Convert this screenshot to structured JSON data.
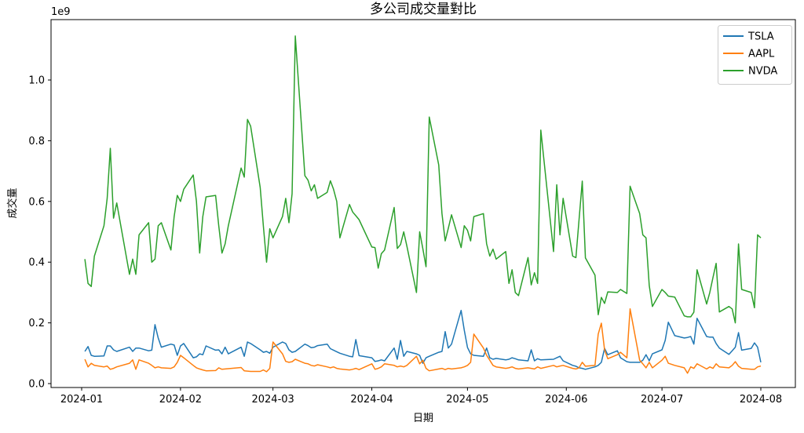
{
  "chart_data": {
    "type": "line",
    "title": "多公司成交量對比",
    "xlabel": "日期",
    "ylabel": "成交量",
    "y_offset_text": "1e9",
    "x_tick_labels": [
      "2024-01",
      "2024-02",
      "2024-03",
      "2024-04",
      "2024-05",
      "2024-06",
      "2024-07",
      "2024-08"
    ],
    "y_tick_labels": [
      "0.0",
      "0.2",
      "0.4",
      "0.6",
      "0.8",
      "1.0"
    ],
    "y_ticks": [
      0.0,
      0.2,
      0.4,
      0.6,
      0.8,
      1.0
    ],
    "ylim": [
      -0.022,
      1.2
    ],
    "grid": false,
    "background": "#ffffff",
    "axis_color": "#000000",
    "legend": {
      "position": "upper right",
      "entries": [
        "TSLA",
        "AAPL",
        "NVDA"
      ]
    },
    "x": [
      "2024-01-02",
      "2024-01-03",
      "2024-01-04",
      "2024-01-05",
      "2024-01-08",
      "2024-01-09",
      "2024-01-10",
      "2024-01-11",
      "2024-01-12",
      "2024-01-16",
      "2024-01-17",
      "2024-01-18",
      "2024-01-19",
      "2024-01-22",
      "2024-01-23",
      "2024-01-24",
      "2024-01-25",
      "2024-01-26",
      "2024-01-29",
      "2024-01-30",
      "2024-01-31",
      "2024-02-01",
      "2024-02-02",
      "2024-02-05",
      "2024-02-06",
      "2024-02-07",
      "2024-02-08",
      "2024-02-09",
      "2024-02-12",
      "2024-02-13",
      "2024-02-14",
      "2024-02-15",
      "2024-02-16",
      "2024-02-20",
      "2024-02-21",
      "2024-02-22",
      "2024-02-23",
      "2024-02-26",
      "2024-02-27",
      "2024-02-28",
      "2024-02-29",
      "2024-03-01",
      "2024-03-04",
      "2024-03-05",
      "2024-03-06",
      "2024-03-07",
      "2024-03-08",
      "2024-03-11",
      "2024-03-12",
      "2024-03-13",
      "2024-03-14",
      "2024-03-15",
      "2024-03-18",
      "2024-03-19",
      "2024-03-20",
      "2024-03-21",
      "2024-03-22",
      "2024-03-25",
      "2024-03-26",
      "2024-03-27",
      "2024-03-28",
      "2024-04-01",
      "2024-04-02",
      "2024-04-03",
      "2024-04-04",
      "2024-04-05",
      "2024-04-08",
      "2024-04-09",
      "2024-04-10",
      "2024-04-11",
      "2024-04-12",
      "2024-04-15",
      "2024-04-16",
      "2024-04-17",
      "2024-04-18",
      "2024-04-19",
      "2024-04-22",
      "2024-04-23",
      "2024-04-24",
      "2024-04-25",
      "2024-04-26",
      "2024-04-29",
      "2024-04-30",
      "2024-05-01",
      "2024-05-02",
      "2024-05-03",
      "2024-05-06",
      "2024-05-07",
      "2024-05-08",
      "2024-05-09",
      "2024-05-10",
      "2024-05-13",
      "2024-05-14",
      "2024-05-15",
      "2024-05-16",
      "2024-05-17",
      "2024-05-20",
      "2024-05-21",
      "2024-05-22",
      "2024-05-23",
      "2024-05-24",
      "2024-05-28",
      "2024-05-29",
      "2024-05-30",
      "2024-05-31",
      "2024-06-03",
      "2024-06-04",
      "2024-06-05",
      "2024-06-06",
      "2024-06-07",
      "2024-06-10",
      "2024-06-11",
      "2024-06-12",
      "2024-06-13",
      "2024-06-14",
      "2024-06-17",
      "2024-06-18",
      "2024-06-20",
      "2024-06-21",
      "2024-06-24",
      "2024-06-25",
      "2024-06-26",
      "2024-06-27",
      "2024-06-28",
      "2024-07-01",
      "2024-07-02",
      "2024-07-03",
      "2024-07-05",
      "2024-07-08",
      "2024-07-09",
      "2024-07-10",
      "2024-07-11",
      "2024-07-12",
      "2024-07-15",
      "2024-07-16",
      "2024-07-17",
      "2024-07-18",
      "2024-07-19",
      "2024-07-22",
      "2024-07-23",
      "2024-07-24",
      "2024-07-25",
      "2024-07-26",
      "2024-07-29",
      "2024-07-30",
      "2024-07-31",
      "2024-08-01"
    ],
    "series": [
      {
        "name": "TSLA",
        "color": "#1f77b4",
        "values": [
          0.106,
          0.122,
          0.093,
          0.09,
          0.091,
          0.124,
          0.124,
          0.111,
          0.106,
          0.12,
          0.106,
          0.117,
          0.117,
          0.108,
          0.11,
          0.194,
          0.15,
          0.12,
          0.13,
          0.127,
          0.093,
          0.124,
          0.132,
          0.085,
          0.088,
          0.098,
          0.095,
          0.124,
          0.11,
          0.111,
          0.098,
          0.12,
          0.098,
          0.12,
          0.09,
          0.137,
          0.132,
          0.111,
          0.103,
          0.106,
          0.1,
          0.12,
          0.137,
          0.132,
          0.111,
          0.103,
          0.106,
          0.13,
          0.125,
          0.118,
          0.12,
          0.125,
          0.13,
          0.115,
          0.11,
          0.105,
          0.1,
          0.09,
          0.088,
          0.145,
          0.092,
          0.085,
          0.073,
          0.075,
          0.078,
          0.075,
          0.117,
          0.08,
          0.142,
          0.09,
          0.106,
          0.098,
          0.093,
          0.067,
          0.085,
          0.09,
          0.103,
          0.106,
          0.171,
          0.117,
          0.13,
          0.241,
          0.176,
          0.119,
          0.098,
          0.093,
          0.09,
          0.117,
          0.085,
          0.08,
          0.083,
          0.078,
          0.08,
          0.085,
          0.082,
          0.078,
          0.075,
          0.111,
          0.075,
          0.082,
          0.078,
          0.08,
          0.085,
          0.09,
          0.075,
          0.06,
          0.057,
          0.052,
          0.05,
          0.047,
          0.055,
          0.06,
          0.07,
          0.116,
          0.095,
          0.108,
          0.085,
          0.072,
          0.07,
          0.07,
          0.077,
          0.095,
          0.075,
          0.098,
          0.111,
          0.142,
          0.202,
          0.158,
          0.15,
          0.152,
          0.155,
          0.13,
          0.215,
          0.155,
          0.153,
          0.153,
          0.132,
          0.117,
          0.096,
          0.108,
          0.12,
          0.168,
          0.11,
          0.116,
          0.134,
          0.12,
          0.07
        ]
      },
      {
        "name": "AAPL",
        "color": "#ff7f0e",
        "values": [
          0.08,
          0.055,
          0.067,
          0.06,
          0.055,
          0.058,
          0.047,
          0.05,
          0.055,
          0.067,
          0.078,
          0.047,
          0.078,
          0.067,
          0.06,
          0.052,
          0.055,
          0.052,
          0.05,
          0.055,
          0.07,
          0.093,
          0.085,
          0.06,
          0.052,
          0.048,
          0.045,
          0.042,
          0.043,
          0.052,
          0.047,
          0.048,
          0.049,
          0.053,
          0.042,
          0.041,
          0.04,
          0.04,
          0.045,
          0.039,
          0.05,
          0.137,
          0.098,
          0.073,
          0.07,
          0.072,
          0.08,
          0.067,
          0.065,
          0.06,
          0.058,
          0.062,
          0.055,
          0.052,
          0.055,
          0.05,
          0.048,
          0.045,
          0.047,
          0.05,
          0.046,
          0.065,
          0.047,
          0.05,
          0.055,
          0.065,
          0.06,
          0.055,
          0.058,
          0.055,
          0.06,
          0.09,
          0.065,
          0.077,
          0.05,
          0.042,
          0.048,
          0.05,
          0.046,
          0.05,
          0.048,
          0.052,
          0.055,
          0.06,
          0.07,
          0.163,
          0.117,
          0.093,
          0.077,
          0.06,
          0.055,
          0.05,
          0.052,
          0.055,
          0.05,
          0.048,
          0.052,
          0.05,
          0.048,
          0.055,
          0.05,
          0.06,
          0.055,
          0.058,
          0.06,
          0.05,
          0.048,
          0.052,
          0.07,
          0.057,
          0.06,
          0.163,
          0.199,
          0.111,
          0.082,
          0.095,
          0.103,
          0.085,
          0.246,
          0.077,
          0.065,
          0.052,
          0.07,
          0.052,
          0.077,
          0.09,
          0.067,
          0.06,
          0.052,
          0.034,
          0.055,
          0.05,
          0.065,
          0.048,
          0.055,
          0.05,
          0.065,
          0.055,
          0.052,
          0.06,
          0.072,
          0.057,
          0.05,
          0.047,
          0.047,
          0.055,
          0.058
        ]
      },
      {
        "name": "NVDA",
        "color": "#2ca02c",
        "values": [
          0.41,
          0.33,
          0.32,
          0.42,
          0.52,
          0.61,
          0.775,
          0.545,
          0.595,
          0.36,
          0.41,
          0.36,
          0.49,
          0.53,
          0.4,
          0.41,
          0.52,
          0.53,
          0.44,
          0.55,
          0.62,
          0.6,
          0.64,
          0.687,
          0.6,
          0.43,
          0.55,
          0.615,
          0.62,
          0.52,
          0.43,
          0.46,
          0.52,
          0.71,
          0.68,
          0.87,
          0.848,
          0.646,
          0.517,
          0.4,
          0.51,
          0.48,
          0.55,
          0.61,
          0.53,
          0.625,
          1.145,
          0.685,
          0.67,
          0.635,
          0.655,
          0.61,
          0.63,
          0.668,
          0.64,
          0.6,
          0.48,
          0.59,
          0.565,
          0.553,
          0.54,
          0.45,
          0.448,
          0.38,
          0.428,
          0.44,
          0.58,
          0.445,
          0.458,
          0.5,
          0.453,
          0.3,
          0.5,
          0.445,
          0.385,
          0.878,
          0.72,
          0.56,
          0.47,
          0.512,
          0.556,
          0.448,
          0.52,
          0.505,
          0.47,
          0.55,
          0.56,
          0.46,
          0.42,
          0.443,
          0.41,
          0.435,
          0.33,
          0.375,
          0.3,
          0.29,
          0.415,
          0.325,
          0.365,
          0.33,
          0.835,
          0.435,
          0.655,
          0.49,
          0.61,
          0.42,
          0.415,
          0.54,
          0.667,
          0.414,
          0.357,
          0.227,
          0.284,
          0.264,
          0.302,
          0.3,
          0.31,
          0.297,
          0.65,
          0.56,
          0.49,
          0.48,
          0.323,
          0.254,
          0.31,
          0.3,
          0.288,
          0.285,
          0.223,
          0.22,
          0.22,
          0.235,
          0.375,
          0.262,
          0.3,
          0.35,
          0.396,
          0.236,
          0.254,
          0.246,
          0.2,
          0.46,
          0.31,
          0.3,
          0.25,
          0.49,
          0.48
        ]
      }
    ]
  }
}
